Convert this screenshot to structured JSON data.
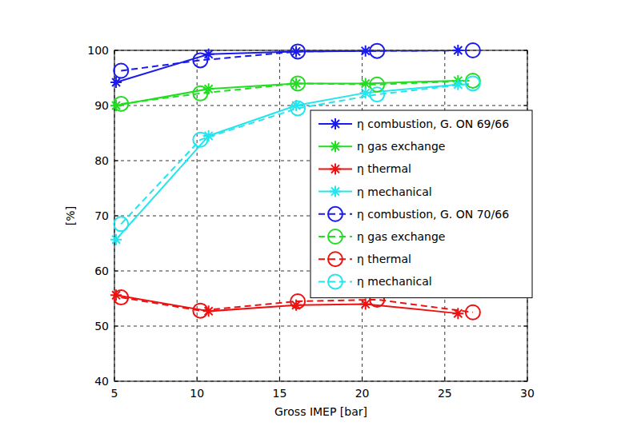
{
  "chart_data": {
    "type": "line",
    "x_label": "Gross IMEP [bar]",
    "y_label": "[%]",
    "xlim": [
      5,
      30
    ],
    "ylim": [
      40,
      100
    ],
    "xticks": [
      5,
      10,
      15,
      20,
      25,
      30
    ],
    "yticks": [
      40,
      50,
      60,
      70,
      80,
      90,
      100
    ],
    "grid": true,
    "legend": "right",
    "series": [
      {
        "name": "η combustion, G. ON 69/66",
        "color": "#1a1aee",
        "marker": "star",
        "line_style": "solid",
        "x": [
          5.1,
          10.7,
          16.0,
          20.2,
          25.8
        ],
        "values": [
          94.2,
          99.3,
          99.8,
          99.9,
          100
        ]
      },
      {
        "name": "η gas exchange",
        "color": "#22dd22",
        "marker": "star",
        "line_style": "solid",
        "x": [
          5.1,
          10.7,
          16.0,
          20.2,
          25.8
        ],
        "values": [
          90.0,
          93.0,
          94.0,
          94.0,
          94.5
        ]
      },
      {
        "name": "η thermal",
        "color": "#ee1111",
        "marker": "star",
        "line_style": "solid",
        "x": [
          5.1,
          10.7,
          16.0,
          20.2,
          25.8
        ],
        "values": [
          55.6,
          52.7,
          53.8,
          54.0,
          52.3
        ]
      },
      {
        "name": "η mechanical",
        "color": "#22e5ee",
        "marker": "star",
        "line_style": "solid",
        "x": [
          5.1,
          10.7,
          16.0,
          20.2,
          25.8
        ],
        "values": [
          65.7,
          84.5,
          90.0,
          92.3,
          93.8
        ]
      },
      {
        "name": "η combustion, G. ON 70/66",
        "color": "#1a1aee",
        "marker": "circle",
        "line_style": "dashed",
        "x": [
          5.4,
          10.2,
          16.1,
          20.9,
          26.7
        ],
        "values": [
          96.3,
          98.2,
          99.8,
          99.9,
          100
        ]
      },
      {
        "name": "η gas exchange",
        "color": "#22dd22",
        "marker": "circle",
        "line_style": "dashed",
        "x": [
          5.4,
          10.2,
          16.1,
          20.9,
          26.7
        ],
        "values": [
          90.3,
          92.2,
          94.0,
          93.8,
          94.5
        ]
      },
      {
        "name": "η thermal",
        "color": "#ee1111",
        "marker": "circle",
        "line_style": "dashed",
        "x": [
          5.4,
          10.2,
          16.1,
          20.9,
          26.7
        ],
        "values": [
          55.2,
          52.8,
          54.5,
          54.8,
          52.5
        ]
      },
      {
        "name": "η mechanical",
        "color": "#22e5ee",
        "marker": "circle",
        "line_style": "dashed",
        "x": [
          5.4,
          10.2,
          16.1,
          20.9,
          26.7
        ],
        "values": [
          68.5,
          83.8,
          89.5,
          92.0,
          94.0
        ]
      }
    ]
  }
}
